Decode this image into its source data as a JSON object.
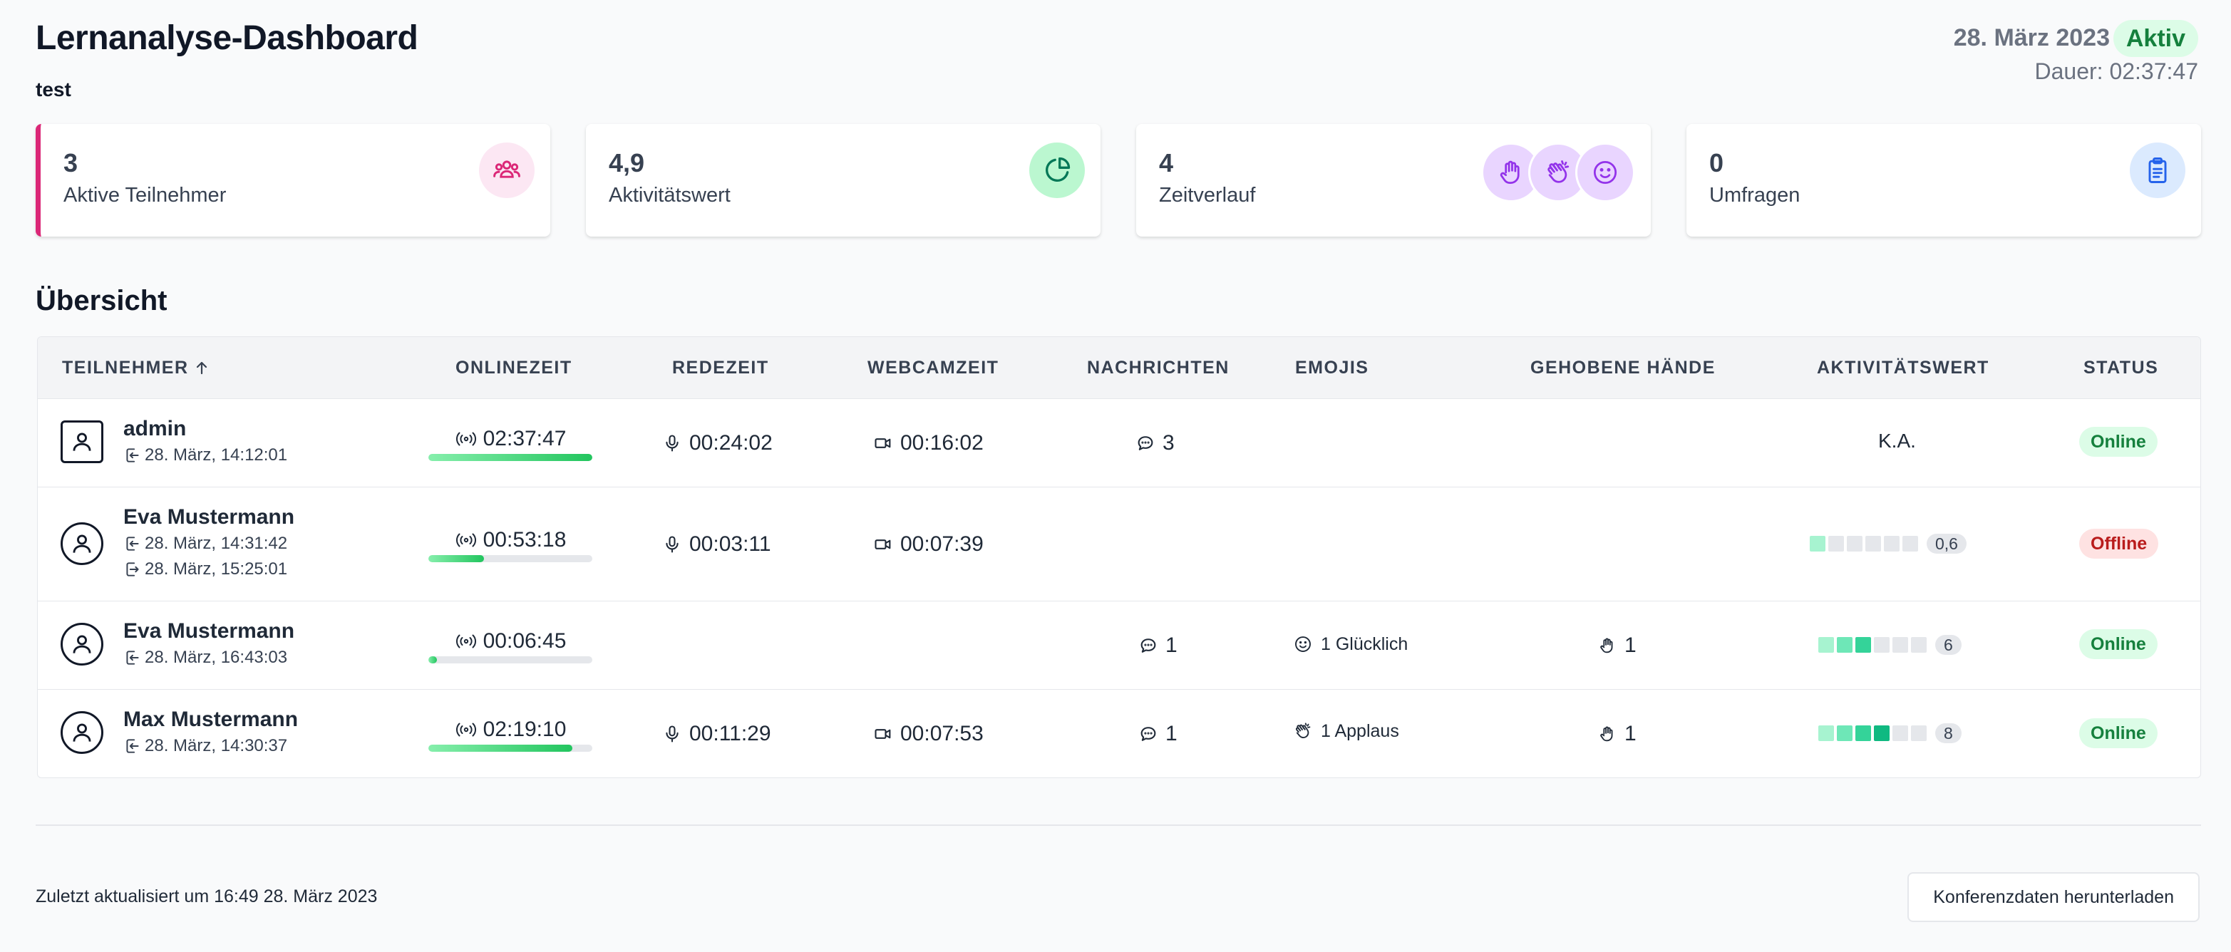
{
  "header": {
    "title": "Lernanalyse-Dashboard",
    "subtitle": "test",
    "date": "28. März 2023",
    "status": "Aktiv",
    "duration": "Dauer: 02:37:47"
  },
  "cards": [
    {
      "value": "3",
      "label": "Aktive Teilnehmer",
      "icon": "users-icon",
      "accent": "#db2777"
    },
    {
      "value": "4,9",
      "label": "Aktivitätswert",
      "icon": "pie-chart-icon",
      "accent": "#10b981"
    },
    {
      "value": "4",
      "label": "Zeitverlauf",
      "icons": [
        "hand-raise-icon",
        "applause-icon",
        "smile-icon"
      ],
      "accent": "#a855f7"
    },
    {
      "value": "0",
      "label": "Umfragen",
      "icon": "clipboard-icon",
      "accent": "#3b82f6"
    }
  ],
  "overview": {
    "heading": "Übersicht",
    "columns": [
      "TEILNEHMER",
      "ONLINEZEIT",
      "REDEZEIT",
      "WEBCAMZEIT",
      "NACHRICHTEN",
      "EMOJIS",
      "GEHOBENE HÄNDE",
      "AKTIVITÄTSWERT",
      "STATUS"
    ],
    "sort_icon": "arrow-up-icon",
    "rows": [
      {
        "name": "admin",
        "avatar": "square",
        "joined": "28. März, 14:12:01",
        "left": null,
        "online": "02:37:47",
        "online_fraction": 1.0,
        "talk": "00:24:02",
        "webcam": "00:16:02",
        "messages": "3",
        "emoji": null,
        "hands": null,
        "activity_text": "K.A.",
        "activity_level": null,
        "activity_score": null,
        "status": "Online"
      },
      {
        "name": "Eva Mustermann",
        "avatar": "circle",
        "joined": "28. März, 14:31:42",
        "left": "28. März, 15:25:01",
        "online": "00:53:18",
        "online_fraction": 0.34,
        "talk": "00:03:11",
        "webcam": "00:07:39",
        "messages": null,
        "emoji": null,
        "hands": null,
        "activity_text": null,
        "activity_level": 1,
        "activity_score": "0,6",
        "status": "Offline"
      },
      {
        "name": "Eva Mustermann",
        "avatar": "circle",
        "joined": "28. März, 16:43:03",
        "left": null,
        "online": "00:06:45",
        "online_fraction": 0.05,
        "talk": null,
        "webcam": null,
        "messages": "1",
        "emoji": "1 Glücklich",
        "emoji_icon": "smile-icon",
        "hands": "1",
        "activity_text": null,
        "activity_level": 3,
        "activity_score": "6",
        "status": "Online"
      },
      {
        "name": "Max Mustermann",
        "avatar": "circle",
        "joined": "28. März, 14:30:37",
        "left": null,
        "online": "02:19:10",
        "online_fraction": 0.88,
        "talk": "00:11:29",
        "webcam": "00:07:53",
        "messages": "1",
        "emoji": "1 Applaus",
        "emoji_icon": "applause-icon",
        "hands": "1",
        "activity_text": null,
        "activity_level": 4,
        "activity_score": "8",
        "status": "Online"
      }
    ]
  },
  "footer": {
    "updated": "Zuletzt aktualisiert um 16:49 28. März 2023",
    "download_label": "Konferenzdaten herunterladen"
  },
  "colors": {
    "online_bg": "#dcfce7",
    "online_fg": "#15803d",
    "offline_bg": "#fee2e2",
    "offline_fg": "#b91c1c"
  }
}
